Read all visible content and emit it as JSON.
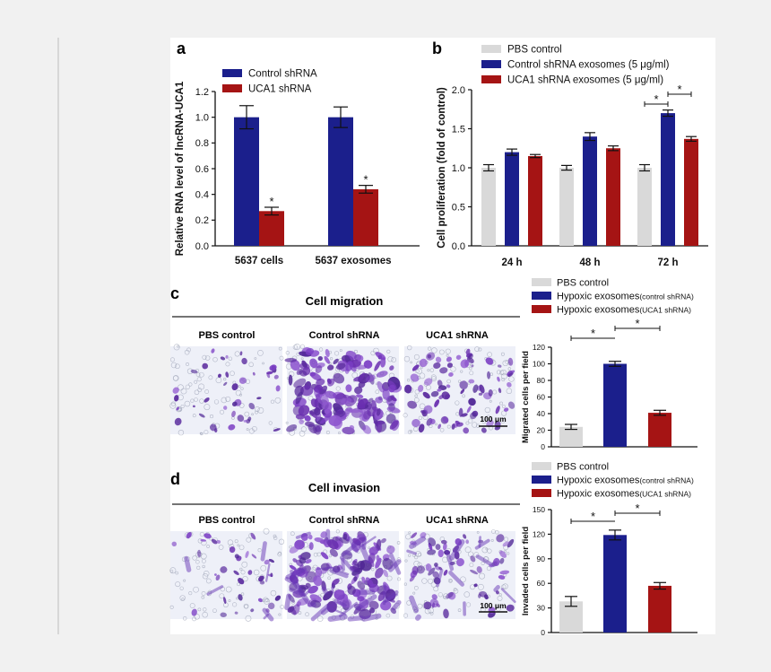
{
  "colors": {
    "pbs": "#d9d9d9",
    "control": "#1b1f8c",
    "uca1": "#a51414",
    "panel_bg": "#ffffff",
    "page_bg": "#f1f1f1",
    "divider": "#bdbdbd"
  },
  "panels": {
    "a": {
      "letter": "a"
    },
    "b": {
      "letter": "b"
    },
    "c": {
      "letter": "c",
      "title": "Cell migration",
      "image_labels": [
        "PBS control",
        "Control shRNA",
        "UCA1 shRNA"
      ],
      "scale_bar": "100 μm"
    },
    "d": {
      "letter": "d",
      "title": "Cell invasion",
      "image_labels": [
        "PBS control",
        "Control shRNA",
        "UCA1 shRNA"
      ],
      "scale_bar": "100 μm"
    }
  },
  "chart_data": [
    {
      "id": "a",
      "type": "bar",
      "ylabel": "Relative RNA level of lncRNA-UCA1",
      "xlabel": "",
      "categories": [
        "5637 cells",
        "5637 exosomes"
      ],
      "ylim": [
        0,
        1.2
      ],
      "yticks": [
        "0.0",
        "0.2",
        "0.4",
        "0.6",
        "0.8",
        "1.0",
        "1.2"
      ],
      "legend": "top-left",
      "series": [
        {
          "name": "Control shRNA",
          "color": "#1b1f8c",
          "values": [
            1.0,
            1.0
          ],
          "errors": [
            0.09,
            0.08
          ]
        },
        {
          "name": "UCA1 shRNA",
          "color": "#a51414",
          "values": [
            0.27,
            0.44
          ],
          "errors": [
            0.03,
            0.03
          ]
        }
      ],
      "annotations": [
        "*",
        "*"
      ]
    },
    {
      "id": "b",
      "type": "bar",
      "ylabel": "Cell proliferation (fold of control)",
      "xlabel": "",
      "categories": [
        "24 h",
        "48 h",
        "72 h"
      ],
      "ylim": [
        0,
        2.0
      ],
      "yticks": [
        "0.0",
        "0.5",
        "1.0",
        "1.5",
        "2.0"
      ],
      "legend": "top-left",
      "series": [
        {
          "name": "PBS control",
          "color": "#d9d9d9",
          "values": [
            1.0,
            1.0,
            1.0
          ],
          "errors": [
            0.04,
            0.03,
            0.04
          ]
        },
        {
          "name": "Control shRNA exosomes (5 μg/ml)",
          "color": "#1b1f8c",
          "values": [
            1.2,
            1.4,
            1.7
          ],
          "errors": [
            0.04,
            0.05,
            0.04
          ]
        },
        {
          "name": "UCA1 shRNA exosomes (5 μg/ml)",
          "color": "#a51414",
          "values": [
            1.15,
            1.25,
            1.37
          ],
          "errors": [
            0.02,
            0.03,
            0.03
          ]
        }
      ],
      "annotations": [
        "*",
        "*"
      ]
    },
    {
      "id": "c",
      "type": "bar",
      "ylabel": "Migrated cells per field",
      "xlabel": "",
      "categories": [
        "PBS control",
        "Hypoxic exosomes(control shRNA)",
        "Hypoxic exosomes(UCA1 shRNA)"
      ],
      "ylim": [
        0,
        120
      ],
      "yticks": [
        "0",
        "20",
        "40",
        "60",
        "80",
        "100",
        "120"
      ],
      "legend": "top",
      "legend_entries": [
        {
          "main": "PBS control",
          "small": ""
        },
        {
          "main": "Hypoxic exosomes",
          "small": "(control shRNA)"
        },
        {
          "main": "Hypoxic exosomes",
          "small": "(UCA1 shRNA)"
        }
      ],
      "values": [
        24,
        100,
        41
      ],
      "errors": [
        3,
        3,
        3
      ],
      "colors": [
        "#d9d9d9",
        "#1b1f8c",
        "#a51414"
      ],
      "annotations": [
        "*",
        "*"
      ]
    },
    {
      "id": "d",
      "type": "bar",
      "ylabel": "Invaded cells per field",
      "xlabel": "",
      "categories": [
        "PBS control",
        "Hypoxic exosomes(control shRNA)",
        "Hypoxic exosomes(UCA1 shRNA)"
      ],
      "ylim": [
        0,
        150
      ],
      "yticks": [
        "0",
        "30",
        "60",
        "90",
        "120",
        "150"
      ],
      "legend": "top",
      "legend_entries": [
        {
          "main": "PBS control",
          "small": ""
        },
        {
          "main": "Hypoxic exosomes",
          "small": "(control shRNA)"
        },
        {
          "main": "Hypoxic exosomes",
          "small": "(UCA1 shRNA)"
        }
      ],
      "values": [
        38,
        119,
        57
      ],
      "errors": [
        6,
        6,
        4
      ],
      "colors": [
        "#d9d9d9",
        "#1b1f8c",
        "#a51414"
      ],
      "annotations": [
        "*",
        "*"
      ]
    }
  ]
}
